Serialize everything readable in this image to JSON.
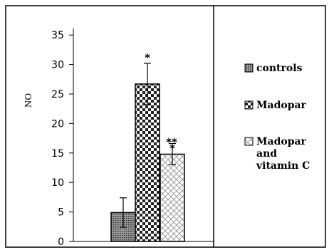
{
  "chart_data": {
    "type": "bar",
    "ylabel": "NO",
    "ylim": [
      0,
      37
    ],
    "yticks": [
      0,
      5,
      10,
      15,
      20,
      25,
      30,
      35
    ],
    "grid": false,
    "legend_position": "right",
    "series": [
      {
        "name": "controls",
        "value": 4.9,
        "error": 2.5,
        "significance": "",
        "pattern": "fine-dots"
      },
      {
        "name": "Madopar",
        "value": 26.7,
        "error": 3.5,
        "significance": "*",
        "pattern": "checker"
      },
      {
        "name": "Madopar and vitamin C",
        "legend_lines": [
          "Madopar",
          "and",
          "vitamin C"
        ],
        "value": 14.8,
        "error": 1.8,
        "significance": "*",
        "significance_extra": "**",
        "pattern": "diamond"
      }
    ]
  }
}
